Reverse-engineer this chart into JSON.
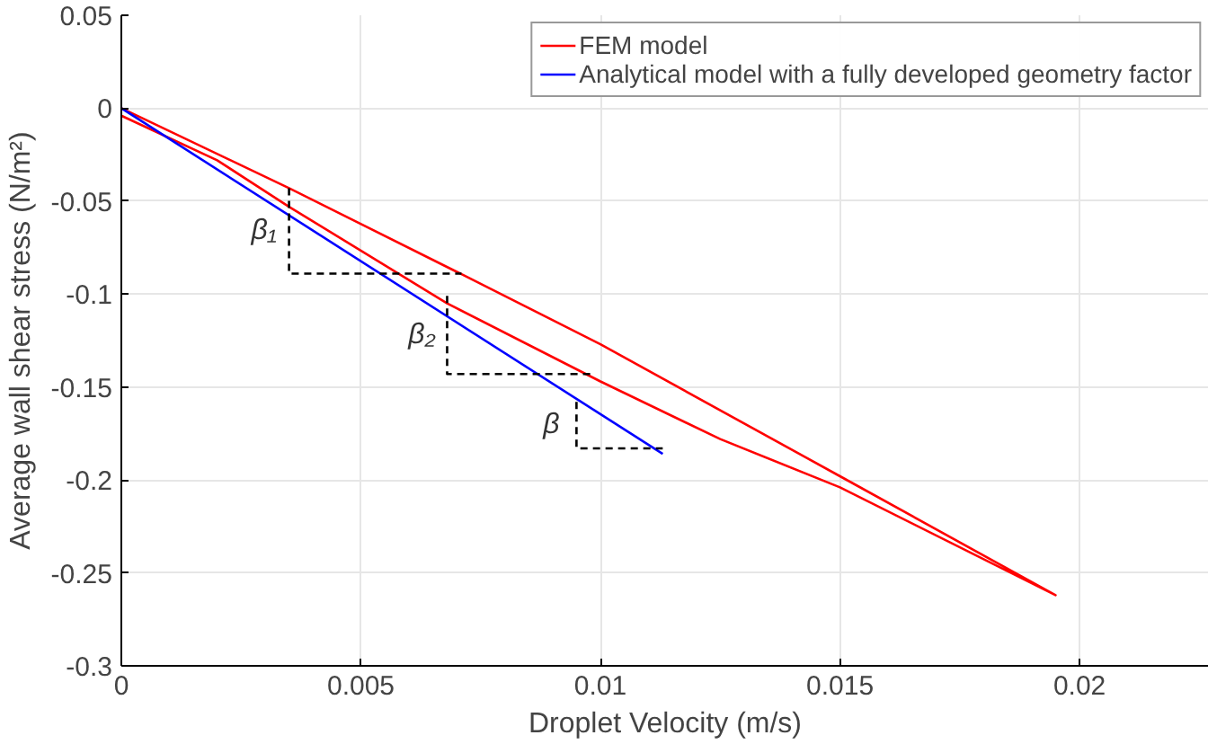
{
  "chart_data": {
    "type": "line",
    "xlabel": "Droplet Velocity (m/s)",
    "ylabel": "Average wall shear stress (N/m²)",
    "xlim": [
      0,
      0.0227
    ],
    "ylim": [
      -0.3,
      0.05
    ],
    "xticks": [
      0,
      0.005,
      0.01,
      0.015,
      0.02
    ],
    "yticks": [
      -0.3,
      -0.25,
      -0.2,
      -0.15,
      -0.1,
      -0.05,
      0,
      0.05
    ],
    "grid": true,
    "legend": "top right",
    "line_style": "solid",
    "series": [
      {
        "name": "FEM model",
        "color": "#ff0000",
        "x": [
          0,
          0.0035,
          0.007,
          0.01,
          0.015,
          0.0195,
          0.015,
          0.0125,
          0.01,
          0.0068,
          0.0035,
          0.002,
          0
        ],
        "values": [
          0,
          -0.043,
          -0.088,
          -0.127,
          -0.198,
          -0.262,
          -0.204,
          -0.178,
          -0.147,
          -0.105,
          -0.053,
          -0.028,
          -0.004
        ]
      },
      {
        "name": "Analytical model with a fully developed geometry factor",
        "color": "#0000ff",
        "x": [
          0,
          0.0113
        ],
        "values": [
          0,
          -0.186
        ]
      },
      {
        "color": "#000000",
        "line_style": "dashed",
        "x": [
          0.0035,
          0.0035,
          0.0071
        ],
        "values": [
          -0.043,
          -0.089,
          -0.089
        ]
      },
      {
        "color": "#000000",
        "line_style": "dashed",
        "x": [
          0.0068,
          0.0068,
          0.0098
        ],
        "values": [
          -0.101,
          -0.143,
          -0.143
        ]
      },
      {
        "color": "#000000",
        "line_style": "dashed",
        "x": [
          0.0095,
          0.0095,
          0.0113
        ],
        "values": [
          -0.158,
          -0.183,
          -0.183
        ]
      }
    ],
    "annotations": [
      "β₁",
      "β₂",
      "β"
    ]
  }
}
